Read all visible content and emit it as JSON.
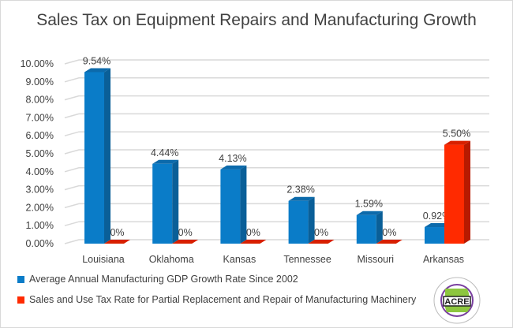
{
  "chart_data": {
    "type": "bar",
    "title": "Sales Tax on Equipment Repairs and Manufacturing Growth",
    "categories": [
      "Louisiana",
      "Oklahoma",
      "Kansas",
      "Tennessee",
      "Missouri",
      "Arkansas"
    ],
    "series": [
      {
        "name": "Average Annual Manufacturing GDP Growth Rate Since 2002",
        "color": "#0a7cc8",
        "values": [
          9.54,
          4.44,
          4.13,
          2.38,
          1.59,
          0.92
        ],
        "labels": [
          "9.54%",
          "4.44%",
          "4.13%",
          "2.38%",
          "1.59%",
          "0.92%"
        ]
      },
      {
        "name": "Sales and Use Tax Rate for Partial Replacement and Repair of Manufacturing Machinery",
        "color": "#ff2a00",
        "values": [
          0,
          0,
          0,
          0,
          0,
          5.5
        ],
        "labels": [
          "0%",
          "0%",
          "0%",
          "0%",
          "0%",
          "5.50%"
        ]
      }
    ],
    "ylim": [
      0,
      10
    ],
    "yticks": [
      "0.00%",
      "1.00%",
      "2.00%",
      "3.00%",
      "4.00%",
      "5.00%",
      "6.00%",
      "7.00%",
      "8.00%",
      "9.00%",
      "10.00%"
    ],
    "grid": true,
    "legend": "bottom-left"
  },
  "logo": {
    "text": "ACRE",
    "ring_text": "UNIVERSITY OF CENTRAL ARKANSAS",
    "tagline": "Educate. Inspire. Transform."
  }
}
